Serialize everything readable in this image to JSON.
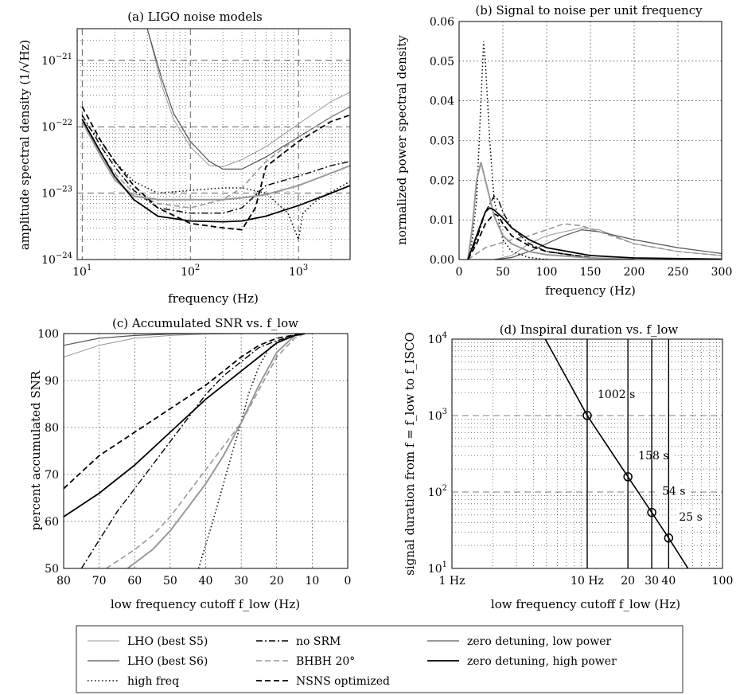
{
  "chart_data": [
    {
      "id": "a",
      "type": "line",
      "title": "(a) LIGO noise models",
      "xlabel": "frequency (Hz)",
      "ylabel": "amplitude spectral density (1/√Hz)",
      "xscale": "log",
      "yscale": "log",
      "xlim": [
        9,
        3000
      ],
      "ylim": [
        1e-24,
        3e-21
      ],
      "xticks": [
        10,
        100,
        1000
      ],
      "xticklabels": [
        "10^1",
        "10^2",
        "10^3"
      ],
      "yticks": [
        1e-24,
        1e-23,
        1e-22,
        1e-21
      ],
      "yticklabels": [
        "10^-24",
        "10^-23",
        "10^-22",
        "10^-21"
      ],
      "grid": true,
      "series": [
        {
          "name": "LHO (best S5)",
          "x": [
            40,
            55,
            70,
            100,
            150,
            200,
            300,
            500,
            1000,
            2000,
            3000
          ],
          "y": [
            3e-21,
            4e-22,
            1.3e-22,
            5e-23,
            2.6e-23,
            2.5e-23,
            3.2e-23,
            5e-23,
            1.1e-22,
            2.4e-22,
            3.3e-22
          ]
        },
        {
          "name": "LHO (best S6)",
          "x": [
            40,
            55,
            70,
            100,
            150,
            200,
            300,
            500,
            1000,
            2000,
            3000
          ],
          "y": [
            3e-21,
            5e-22,
            1.6e-22,
            6e-23,
            3e-23,
            2.3e-23,
            2.3e-23,
            3.5e-23,
            7e-23,
            1.4e-22,
            2e-22
          ]
        },
        {
          "name": "high freq",
          "x": [
            10,
            15,
            20,
            30,
            50,
            100,
            200,
            300,
            500,
            800,
            1000,
            1100,
            1500,
            3000
          ],
          "y": [
            1.3e-22,
            6e-23,
            3e-23,
            1.5e-23,
            1e-23,
            1.1e-23,
            1.2e-23,
            1.2e-23,
            1e-23,
            5e-24,
            2e-24,
            5e-24,
            8e-24,
            1.5e-23
          ]
        },
        {
          "name": "no SRM",
          "x": [
            10,
            15,
            20,
            30,
            50,
            100,
            200,
            300,
            500,
            1000,
            2000,
            3000
          ],
          "y": [
            1.5e-22,
            5e-23,
            2.5e-23,
            1.1e-23,
            6e-24,
            5e-24,
            5e-24,
            6e-24,
            1.3e-23,
            1.8e-23,
            2.6e-23,
            3e-23
          ]
        },
        {
          "name": "BHBH 20°",
          "x": [
            10,
            15,
            20,
            30,
            50,
            100,
            200,
            300,
            500,
            1000,
            2000,
            3000
          ],
          "y": [
            1.2e-22,
            4e-23,
            2e-23,
            1e-23,
            7e-24,
            6e-24,
            8e-24,
            1.2e-23,
            3e-23,
            7e-23,
            1.4e-22,
            2e-22
          ]
        },
        {
          "name": "NSNS optimized",
          "x": [
            10,
            15,
            20,
            30,
            50,
            100,
            200,
            300,
            400,
            500,
            1000,
            2000,
            3000
          ],
          "y": [
            2e-22,
            6e-23,
            3e-23,
            1.3e-23,
            6e-24,
            3.5e-24,
            3e-24,
            2.8e-24,
            6e-24,
            2.5e-23,
            6e-23,
            1.2e-22,
            1.5e-22
          ]
        },
        {
          "name": "zero detuning, low power",
          "x": [
            10,
            15,
            20,
            30,
            50,
            100,
            200,
            300,
            500,
            1000,
            2000,
            3000
          ],
          "y": [
            1.2e-22,
            3.5e-23,
            1.6e-23,
            9e-24,
            8e-24,
            8e-24,
            8e-24,
            8.5e-24,
            9.5e-24,
            1.3e-23,
            2e-23,
            2.6e-23
          ]
        },
        {
          "name": "zero detuning, high power",
          "x": [
            10,
            15,
            20,
            30,
            50,
            100,
            200,
            300,
            500,
            1000,
            2000,
            3000
          ],
          "y": [
            1.3e-22,
            4e-23,
            1.8e-23,
            8e-24,
            4.5e-24,
            3.8e-24,
            3.7e-24,
            3.8e-24,
            4.5e-24,
            6.5e-24,
            1e-23,
            1.3e-23
          ]
        }
      ]
    },
    {
      "id": "b",
      "type": "line",
      "title": "(b) Signal to noise per unit frequency",
      "xlabel": "frequency (Hz)",
      "ylabel": "normalized power spectral density",
      "xlim": [
        0,
        300
      ],
      "ylim": [
        0,
        0.06
      ],
      "xticks": [
        0,
        50,
        100,
        150,
        200,
        250,
        300
      ],
      "xticklabels": [
        "0",
        "50",
        "100",
        "150",
        "200",
        "250",
        "300"
      ],
      "yticks": [
        0,
        0.01,
        0.02,
        0.03,
        0.04,
        0.05,
        0.06
      ],
      "yticklabels": [
        "0.00",
        "0.01",
        "0.02",
        "0.03",
        "0.04",
        "0.05",
        "0.06"
      ],
      "grid": true,
      "series": [
        {
          "name": "LHO (best S5)",
          "x": [
            40,
            60,
            80,
            100,
            120,
            140,
            160,
            200,
            250,
            300
          ],
          "y": [
            0,
            0.001,
            0.004,
            0.006,
            0.007,
            0.008,
            0.0075,
            0.004,
            0.002,
            0.001
          ]
        },
        {
          "name": "LHO (best S6)",
          "x": [
            40,
            60,
            80,
            100,
            120,
            140,
            160,
            200,
            250,
            300
          ],
          "y": [
            0,
            0.0005,
            0.002,
            0.004,
            0.006,
            0.0075,
            0.007,
            0.005,
            0.003,
            0.0015
          ]
        },
        {
          "name": "high freq",
          "x": [
            10,
            15,
            20,
            25,
            28,
            30,
            35,
            40,
            50,
            60,
            80,
            100
          ],
          "y": [
            0,
            0.005,
            0.015,
            0.04,
            0.055,
            0.05,
            0.03,
            0.015,
            0.005,
            0.002,
            0.0005,
            0
          ]
        },
        {
          "name": "no SRM",
          "x": [
            10,
            20,
            30,
            40,
            45,
            50,
            60,
            80,
            100,
            150
          ],
          "y": [
            0,
            0.005,
            0.012,
            0.016,
            0.015,
            0.012,
            0.008,
            0.004,
            0.002,
            0.0005
          ]
        },
        {
          "name": "BHBH 20°",
          "x": [
            10,
            30,
            60,
            80,
            100,
            120,
            140,
            160,
            200,
            250,
            300
          ],
          "y": [
            0,
            0.003,
            0.005,
            0.006,
            0.0075,
            0.009,
            0.0085,
            0.007,
            0.004,
            0.002,
            0.001
          ]
        },
        {
          "name": "NSNS optimized",
          "x": [
            10,
            20,
            30,
            40,
            45,
            50,
            60,
            80,
            100,
            150
          ],
          "y": [
            0,
            0.004,
            0.009,
            0.0115,
            0.011,
            0.009,
            0.006,
            0.0035,
            0.002,
            0.0005
          ]
        },
        {
          "name": "zero detuning, low power",
          "x": [
            10,
            15,
            20,
            25,
            30,
            40,
            50,
            60,
            80,
            100,
            150,
            200
          ],
          "y": [
            0,
            0.008,
            0.02,
            0.0245,
            0.02,
            0.011,
            0.006,
            0.004,
            0.002,
            0.0012,
            0.0004,
            0.0001
          ]
        },
        {
          "name": "zero detuning, high power",
          "x": [
            10,
            20,
            30,
            35,
            40,
            50,
            60,
            80,
            100,
            150,
            200,
            300
          ],
          "y": [
            0,
            0.006,
            0.012,
            0.013,
            0.0125,
            0.0105,
            0.008,
            0.005,
            0.003,
            0.001,
            0.0004,
            0.0001
          ]
        }
      ]
    },
    {
      "id": "c",
      "type": "line",
      "title": "(c) Accumulated SNR vs. f_low",
      "xlabel": "low frequency cutoff f_low (Hz)",
      "ylabel": "percent accumulated SNR",
      "xlim": [
        80,
        0
      ],
      "ylim": [
        50,
        100
      ],
      "xticks": [
        80,
        70,
        60,
        50,
        40,
        30,
        20,
        10,
        0
      ],
      "xticklabels": [
        "80",
        "70",
        "60",
        "50",
        "40",
        "30",
        "20",
        "10",
        "0"
      ],
      "yticks": [
        50,
        60,
        70,
        80,
        90,
        100
      ],
      "yticklabels": [
        "50",
        "60",
        "70",
        "80",
        "90",
        "100"
      ],
      "grid": true,
      "series": [
        {
          "name": "LHO (best S5)",
          "x": [
            80,
            70,
            60,
            50,
            40,
            30,
            20,
            10
          ],
          "y": [
            95,
            97.5,
            99,
            99.6,
            99.9,
            100,
            100,
            100
          ]
        },
        {
          "name": "LHO (best S6)",
          "x": [
            80,
            70,
            60,
            50,
            40,
            30,
            20,
            10
          ],
          "y": [
            97.5,
            99,
            99.6,
            99.9,
            100,
            100,
            100,
            100
          ]
        },
        {
          "name": "high freq",
          "x": [
            42,
            38,
            35,
            32,
            30,
            28,
            25,
            22,
            18,
            15,
            12
          ],
          "y": [
            50,
            60,
            68,
            76,
            81,
            87,
            93,
            97,
            99,
            99.7,
            100
          ]
        },
        {
          "name": "no SRM",
          "x": [
            75,
            70,
            65,
            60,
            55,
            50,
            45,
            40,
            35,
            30,
            25,
            20,
            15,
            12
          ],
          "y": [
            50,
            56,
            62,
            67,
            72,
            77,
            82,
            87,
            91,
            94,
            97,
            98.5,
            99.5,
            100
          ]
        },
        {
          "name": "BHBH 20°",
          "x": [
            68,
            60,
            55,
            50,
            45,
            40,
            35,
            30,
            25,
            20,
            15,
            12
          ],
          "y": [
            50,
            54,
            57,
            61,
            66,
            71,
            76,
            81,
            88,
            95,
            99,
            100
          ]
        },
        {
          "name": "NSNS optimized",
          "x": [
            80,
            70,
            60,
            50,
            40,
            35,
            30,
            25,
            20,
            15,
            12
          ],
          "y": [
            67,
            74,
            79,
            84,
            89,
            92,
            95,
            97.5,
            99,
            99.7,
            100
          ]
        },
        {
          "name": "zero detuning, low power",
          "x": [
            62,
            55,
            50,
            45,
            40,
            35,
            30,
            25,
            20,
            15,
            12
          ],
          "y": [
            50,
            54,
            58,
            63,
            68,
            74,
            81,
            89,
            96,
            99.5,
            100
          ]
        },
        {
          "name": "zero detuning, high power",
          "x": [
            80,
            70,
            60,
            50,
            40,
            30,
            25,
            20,
            15,
            12
          ],
          "y": [
            61,
            66,
            72,
            79,
            86,
            92,
            95,
            98,
            99.6,
            100
          ]
        }
      ]
    },
    {
      "id": "d",
      "type": "line",
      "title": "(d) Inspiral duration vs. f_low",
      "xlabel": "low frequency cutoff f_low (Hz)",
      "ylabel": "signal duration from f = f_low to f_ISCO",
      "xscale": "log",
      "yscale": "log",
      "xlim": [
        1,
        100
      ],
      "ylim": [
        10,
        10000
      ],
      "xticks": [
        1,
        10,
        20,
        30,
        40,
        100
      ],
      "xticklabels": [
        "1 Hz",
        "10 Hz",
        "20",
        "30",
        "40",
        "100"
      ],
      "yticks": [
        10,
        100,
        1000,
        10000
      ],
      "yticklabels": [
        "10^1",
        "10^2",
        "10^3",
        "10^4"
      ],
      "grid": true,
      "series": [
        {
          "name": "",
          "x": [
            4.9,
            10,
            20,
            30,
            40,
            60
          ],
          "y": [
            10000,
            1002,
            158,
            54,
            25,
            8.1
          ]
        }
      ],
      "markers": [
        {
          "x": 10,
          "y": 1002,
          "label": "1002 s"
        },
        {
          "x": 20,
          "y": 158,
          "label": "158 s"
        },
        {
          "x": 30,
          "y": 54,
          "label": "54 s"
        },
        {
          "x": 40,
          "y": 25,
          "label": "25 s"
        }
      ]
    }
  ],
  "legend": {
    "placement": "bottom",
    "entries": [
      {
        "label": "LHO (best S5)",
        "color": "#999999",
        "dash": "",
        "width": 1
      },
      {
        "label": "no SRM",
        "color": "#000000",
        "dash": "8 3 2 3",
        "width": 1.4
      },
      {
        "label": "zero detuning, low power",
        "color": "#999999",
        "dash": "",
        "width": 2
      },
      {
        "label": "LHO (best S6)",
        "color": "#555555",
        "dash": "",
        "width": 1.2
      },
      {
        "label": "BHBH 20°",
        "color": "#999999",
        "dash": "7 4",
        "width": 1.6
      },
      {
        "label": "zero detuning, high power",
        "color": "#000000",
        "dash": "",
        "width": 1.8
      },
      {
        "label": "high freq",
        "color": "#000000",
        "dash": "1.5 3",
        "width": 1.5
      },
      {
        "label": "NSNS optimized",
        "color": "#000000",
        "dash": "7 4",
        "width": 1.8
      }
    ]
  }
}
